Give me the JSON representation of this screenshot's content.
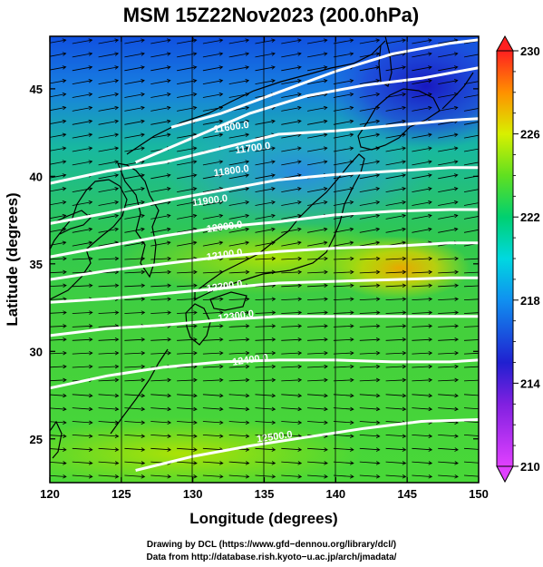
{
  "chart_data": {
    "type": "heatmap",
    "title": "MSM 15Z22Nov2023 (200.0hPa)",
    "xlabel": "Longitude (degrees)",
    "ylabel": "Latitude  (degrees)",
    "xlim": [
      120,
      150
    ],
    "ylim": [
      22.5,
      48
    ],
    "x_ticks": [
      120,
      125,
      130,
      135,
      140,
      145,
      150
    ],
    "y_ticks": [
      25,
      30,
      35,
      40,
      45
    ],
    "colorbar": {
      "min": 210,
      "max": 230,
      "ticks": [
        210,
        214,
        218,
        222,
        226,
        230
      ],
      "colors": [
        "#e040ff",
        "#2020d0",
        "#00c8ff",
        "#00d880",
        "#c8f000",
        "#ff8800",
        "#ff2020"
      ]
    },
    "contour_labels": [
      {
        "text": "11600.0",
        "lon": 131.5,
        "lat": 42.5
      },
      {
        "text": "11700.0",
        "lon": 133.0,
        "lat": 41.3
      },
      {
        "text": "11800.0",
        "lon": 131.5,
        "lat": 40.0
      },
      {
        "text": "11900.0",
        "lon": 130.0,
        "lat": 38.3
      },
      {
        "text": "12000.0",
        "lon": 131.0,
        "lat": 36.8
      },
      {
        "text": "12100.0",
        "lon": 131.0,
        "lat": 35.2
      },
      {
        "text": "12200.0",
        "lon": 131.0,
        "lat": 33.4
      },
      {
        "text": "12300.0",
        "lon": 131.8,
        "lat": 31.7
      },
      {
        "text": "12400.0",
        "lon": 132.8,
        "lat": 29.2
      },
      {
        "text": "12500.0",
        "lon": 134.5,
        "lat": 24.8
      }
    ],
    "contours": [
      {
        "level": "11600.0",
        "points": [
          [
            128.5,
            42.8
          ],
          [
            132,
            43.6
          ],
          [
            136,
            44.8
          ],
          [
            140,
            46.0
          ],
          [
            144,
            47.0
          ],
          [
            148,
            47.6
          ],
          [
            150,
            47.8
          ]
        ]
      },
      {
        "level": "11700.0",
        "points": [
          [
            126,
            40.8
          ],
          [
            130,
            42.2
          ],
          [
            134,
            43.6
          ],
          [
            138,
            44.6
          ],
          [
            142,
            45.2
          ],
          [
            146,
            45.6
          ],
          [
            150,
            46.2
          ]
        ]
      },
      {
        "level": "11800.0",
        "points": [
          [
            120,
            39.6
          ],
          [
            124,
            40.3
          ],
          [
            128,
            40.8
          ],
          [
            132,
            41.6
          ],
          [
            136,
            42.4
          ],
          [
            140,
            42.6
          ],
          [
            144,
            42.9
          ],
          [
            148,
            43.2
          ],
          [
            150,
            43.3
          ]
        ]
      },
      {
        "level": "11900.0",
        "points": [
          [
            120,
            37.3
          ],
          [
            124,
            37.9
          ],
          [
            128,
            38.6
          ],
          [
            132,
            39.2
          ],
          [
            136,
            39.8
          ],
          [
            140,
            40.1
          ],
          [
            144,
            40.3
          ],
          [
            148,
            40.5
          ],
          [
            150,
            40.5
          ]
        ]
      },
      {
        "level": "12000.0",
        "points": [
          [
            120,
            35.4
          ],
          [
            124,
            36.0
          ],
          [
            128,
            36.6
          ],
          [
            132,
            37.1
          ],
          [
            136,
            37.4
          ],
          [
            140,
            37.8
          ],
          [
            144,
            38.0
          ],
          [
            148,
            38.1
          ],
          [
            150,
            38.1
          ]
        ]
      },
      {
        "level": "12100.0",
        "points": [
          [
            120,
            34.1
          ],
          [
            124,
            34.6
          ],
          [
            128,
            35.0
          ],
          [
            132,
            35.4
          ],
          [
            136,
            35.7
          ],
          [
            140,
            35.9
          ],
          [
            144,
            36.0
          ],
          [
            148,
            36.2
          ],
          [
            150,
            36.2
          ]
        ]
      },
      {
        "level": "12200.0",
        "points": [
          [
            120,
            32.8
          ],
          [
            124,
            33.0
          ],
          [
            128,
            33.3
          ],
          [
            132,
            33.6
          ],
          [
            136,
            33.9
          ],
          [
            140,
            34.0
          ],
          [
            144,
            34.1
          ],
          [
            148,
            34.2
          ],
          [
            150,
            34.2
          ]
        ]
      },
      {
        "level": "12300.0",
        "points": [
          [
            120,
            30.9
          ],
          [
            124,
            31.3
          ],
          [
            128,
            31.5
          ],
          [
            132,
            31.8
          ],
          [
            136,
            32.0
          ],
          [
            140,
            32.0
          ],
          [
            144,
            32.0
          ],
          [
            148,
            32.0
          ],
          [
            150,
            32.0
          ]
        ]
      },
      {
        "level": "12400.0",
        "points": [
          [
            120,
            27.9
          ],
          [
            124,
            28.6
          ],
          [
            128,
            29.1
          ],
          [
            132,
            29.4
          ],
          [
            136,
            29.5
          ],
          [
            140,
            29.5
          ],
          [
            144,
            29.4
          ],
          [
            148,
            29.4
          ],
          [
            150,
            29.5
          ]
        ]
      },
      {
        "level": "12500.0",
        "points": [
          [
            126,
            23.2
          ],
          [
            130,
            24.0
          ],
          [
            134,
            24.6
          ],
          [
            138,
            25.1
          ],
          [
            142,
            25.6
          ],
          [
            146,
            26.0
          ],
          [
            150,
            26.1
          ]
        ]
      }
    ]
  },
  "credits": {
    "line1": "Drawing by DCL (https://www.gfd−dennou.org/library/dcl/)",
    "line2": "Data from http://database.rish.kyoto−u.ac.jp/arch/jmadata/"
  }
}
